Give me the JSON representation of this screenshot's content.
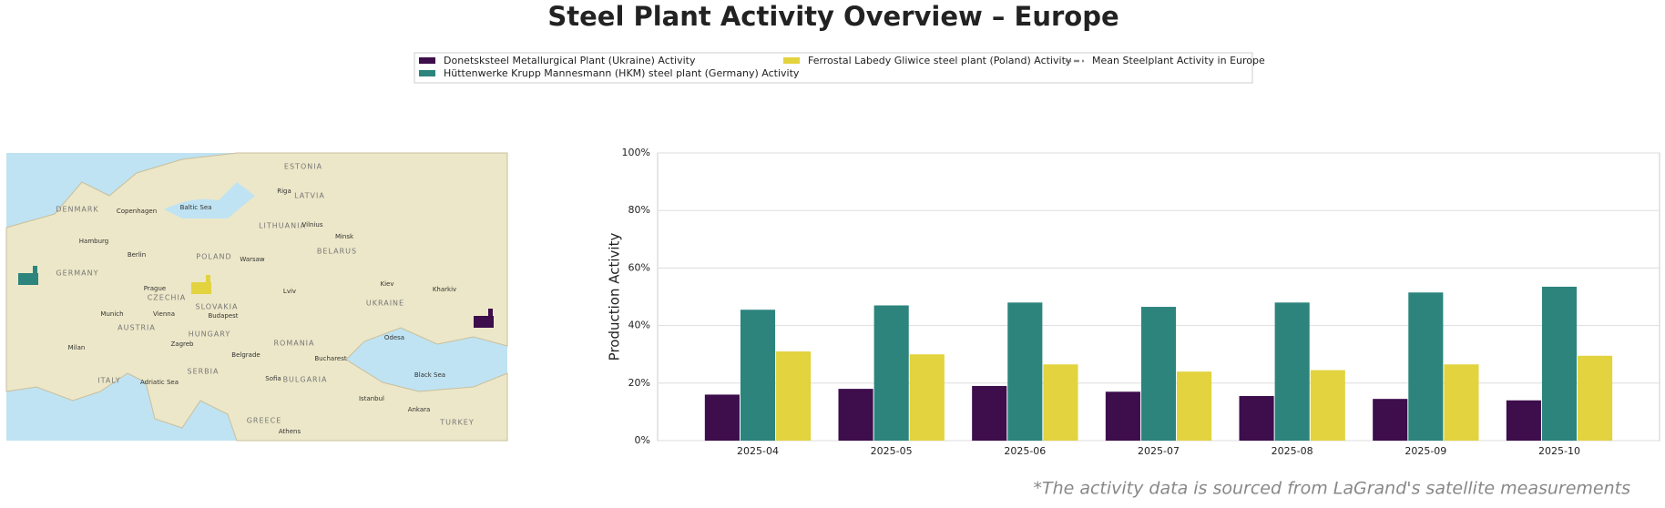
{
  "chart_data": {
    "type": "bar",
    "title": "Steel Plant Activity Overview – Europe",
    "y_label": "Production Activity",
    "footnote": "*The activity data is sourced from LaGrand's satellite measurements",
    "categories": [
      "2025-04",
      "2025-05",
      "2025-06",
      "2025-07",
      "2025-08",
      "2025-09",
      "2025-10"
    ],
    "series": [
      {
        "name": "Donetsksteel Metallurgical Plant (Ukraine) Activity",
        "color": "#3d0d4c",
        "values": [
          16,
          18,
          19,
          17,
          15.5,
          14.5,
          14
        ]
      },
      {
        "name": "Hüttenwerke Krupp Mannesmann (HKM) steel plant (Germany) Activity",
        "color": "#2c847d",
        "values": [
          45.5,
          47,
          48,
          46.5,
          48,
          51.5,
          53.5
        ]
      },
      {
        "name": "Ferrostal Labedy Gliwice steel plant (Poland) Activity",
        "color": "#e2d33f",
        "values": [
          31,
          30,
          26.5,
          24,
          24.5,
          26.5,
          29.5
        ]
      }
    ],
    "mean_line": {
      "name": "Mean Steelplant Activity in Europe",
      "color": "#888888"
    },
    "ylim": [
      0,
      100
    ],
    "yticks": [
      {
        "value": 0,
        "label": "0%"
      },
      {
        "value": 20,
        "label": "20%"
      },
      {
        "value": 40,
        "label": "40%"
      },
      {
        "value": 60,
        "label": "60%"
      },
      {
        "value": 80,
        "label": "80%"
      },
      {
        "value": 100,
        "label": "100%"
      }
    ],
    "grid": true,
    "map_labels": [
      "ESTONIA",
      "Riga",
      "LATVIA",
      "LITHUANIA",
      "Vilnius",
      "Minsk",
      "BELARUS",
      "DENMARK",
      "Copenhagen",
      "Baltic Sea",
      "Hamburg",
      "Berlin",
      "POLAND",
      "Warsaw",
      "GERMANY",
      "Prague",
      "CZECHIA",
      "Kiev",
      "Lviv",
      "Kharkiv",
      "UKRAINE",
      "Munich",
      "Vienna",
      "SLOVAKIA",
      "AUSTRIA",
      "Budapest",
      "HUNGARY",
      "ROMANIA",
      "Milan",
      "Zagreb",
      "Belgrade",
      "Bucharest",
      "Odesa",
      "SERBIA",
      "Sofia",
      "BULGARIA",
      "Black Sea",
      "Adriatic Sea",
      "ITALY",
      "Istanbul",
      "Ankara",
      "TURKEY",
      "GREECE",
      "Athens"
    ]
  }
}
